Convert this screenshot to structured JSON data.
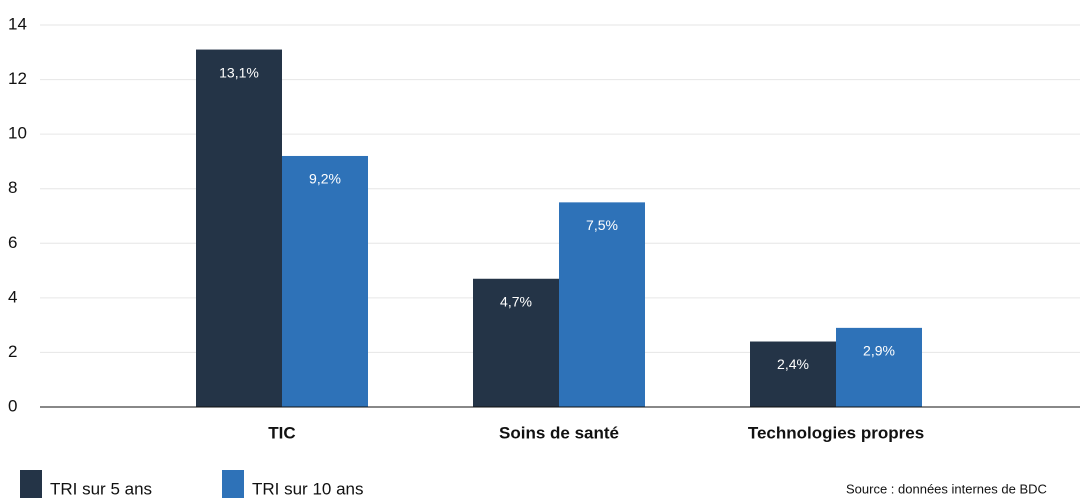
{
  "chart_data": {
    "type": "bar",
    "categories": [
      "TIC",
      "Soins de santé",
      "Technologies propres"
    ],
    "series": [
      {
        "name": "TRI sur 5 ans",
        "color": "#243447",
        "values": [
          13.1,
          4.7,
          2.4
        ],
        "value_labels": [
          "13,1%",
          "4,7%",
          "2,4%"
        ]
      },
      {
        "name": "TRI sur 10 ans",
        "color": "#2e72b8",
        "values": [
          9.2,
          7.5,
          2.9
        ],
        "value_labels": [
          "9,2%",
          "7,5%",
          "2,9%"
        ]
      }
    ],
    "ylim": [
      0,
      14
    ],
    "yticks": [
      0,
      2,
      4,
      6,
      8,
      10,
      12,
      14
    ],
    "grid": true,
    "source": "Source : données internes de BDC"
  }
}
